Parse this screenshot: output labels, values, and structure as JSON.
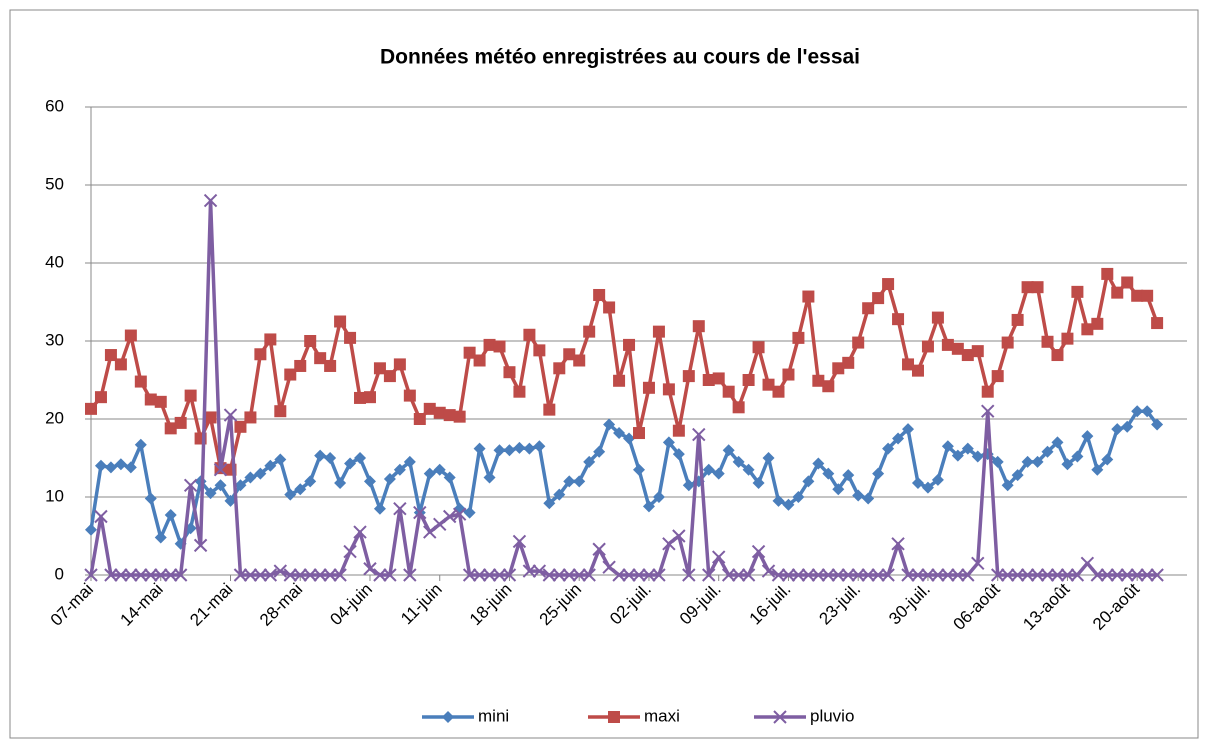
{
  "chart_data": {
    "type": "line",
    "title": "Données météo enregistrées au cours de l'essai",
    "categories": [
      "07-mai",
      null,
      null,
      null,
      null,
      null,
      null,
      "14-mai",
      null,
      null,
      null,
      null,
      null,
      null,
      "21-mai",
      null,
      null,
      null,
      null,
      null,
      null,
      "28-mai",
      null,
      null,
      null,
      null,
      null,
      null,
      "04-juin",
      null,
      null,
      null,
      null,
      null,
      null,
      "11-juin",
      null,
      null,
      null,
      null,
      null,
      null,
      "18-juin",
      null,
      null,
      null,
      null,
      null,
      null,
      "25-juin",
      null,
      null,
      null,
      null,
      null,
      null,
      "02-juil.",
      null,
      null,
      null,
      null,
      null,
      null,
      "09-juil.",
      null,
      null,
      null,
      null,
      null,
      null,
      "16-juil.",
      null,
      null,
      null,
      null,
      null,
      null,
      "23-juil.",
      null,
      null,
      null,
      null,
      null,
      null,
      "30-juil.",
      null,
      null,
      null,
      null,
      null,
      null,
      "06-août",
      null,
      null,
      null,
      null,
      null,
      null,
      "13-août",
      null,
      null,
      null,
      null,
      null,
      null,
      "20-août",
      null,
      null
    ],
    "series": [
      {
        "name": "mini",
        "color": "#4a7ebb",
        "marker": "diamond",
        "values": [
          5.8,
          14,
          13.8,
          14.2,
          13.8,
          16.7,
          9.8,
          4.8,
          7.7,
          4,
          6,
          12,
          10.5,
          11.5,
          9.5,
          11.5,
          12.5,
          13,
          14,
          14.8,
          10.3,
          11,
          12,
          15.3,
          15,
          11.8,
          14.3,
          15,
          12,
          8.5,
          12.3,
          13.5,
          14.5,
          8,
          13,
          13.5,
          12.5,
          8.5,
          8,
          16.2,
          12.5,
          16,
          16,
          16.3,
          16.2,
          16.5,
          9.2,
          10.3,
          12,
          12,
          14.5,
          15.8,
          19.3,
          18.2,
          17.5,
          13.5,
          8.8,
          10,
          17,
          15.5,
          11.5,
          12,
          13.5,
          13,
          16,
          14.5,
          13.5,
          11.8,
          15,
          9.5,
          9,
          10,
          12,
          14.3,
          13,
          11,
          12.8,
          10.2,
          9.8,
          13,
          16.2,
          17.5,
          18.7,
          11.8,
          11.2,
          12.2,
          16.5,
          15.3,
          16.2,
          15.2,
          15.5,
          14.5,
          11.5,
          12.8,
          14.5,
          14.5,
          15.8,
          17,
          14.2,
          15.2,
          17.8,
          13.5,
          14.8,
          18.7,
          19,
          21,
          21,
          19.3
        ]
      },
      {
        "name": "maxi",
        "color": "#be4b48",
        "marker": "square",
        "values": [
          21.3,
          22.8,
          28.2,
          27,
          30.7,
          24.8,
          22.5,
          22.2,
          18.8,
          19.5,
          23,
          17.5,
          20.2,
          13.7,
          13.5,
          19,
          20.2,
          28.3,
          30.2,
          21,
          25.7,
          26.8,
          30,
          27.8,
          26.8,
          32.5,
          30.4,
          22.7,
          22.8,
          26.5,
          25.5,
          27,
          23,
          20,
          21.3,
          20.8,
          20.5,
          20.3,
          28.5,
          27.5,
          29.5,
          29.3,
          26,
          23.5,
          30.8,
          28.8,
          21.2,
          26.5,
          28.3,
          27.5,
          31.2,
          35.9,
          34.3,
          24.9,
          29.5,
          18.2,
          24,
          31.2,
          23.8,
          18.5,
          25.5,
          31.9,
          25,
          25.2,
          23.5,
          21.5,
          25,
          29.2,
          24.4,
          23.5,
          25.7,
          30.4,
          35.7,
          24.9,
          24.2,
          26.5,
          27.2,
          29.8,
          34.2,
          35.5,
          37.3,
          32.8,
          27,
          26.2,
          29.3,
          33,
          29.5,
          29,
          28.2,
          28.7,
          23.5,
          25.5,
          29.8,
          32.7,
          36.9,
          36.9,
          29.9,
          28.2,
          30.3,
          36.3,
          31.5,
          32.2,
          38.6,
          36.2,
          37.5,
          35.8,
          35.8,
          32.3
        ]
      },
      {
        "name": "pluvio",
        "color": "#7e5ea2",
        "marker": "x",
        "values": [
          0,
          7.5,
          0,
          0,
          0,
          0,
          0,
          0,
          0,
          0,
          11.5,
          3.8,
          48,
          13.5,
          20.5,
          0,
          0,
          0,
          0,
          0.5,
          0,
          0,
          0,
          0,
          0,
          0,
          3,
          5.5,
          0.8,
          0,
          0,
          8.5,
          0,
          8,
          5.5,
          6.5,
          7.5,
          7.8,
          0,
          0,
          0,
          0,
          0,
          4.3,
          0.5,
          0.5,
          0,
          0,
          0,
          0,
          0,
          3.3,
          1,
          0,
          0,
          0,
          0,
          0,
          4,
          5,
          0,
          18,
          0,
          2.3,
          0,
          0,
          0,
          3,
          0.5,
          0,
          0,
          0,
          0,
          0,
          0,
          0,
          0,
          0,
          0,
          0,
          0,
          4,
          0,
          0,
          0,
          0,
          0,
          0,
          0,
          1.5,
          21,
          0,
          0,
          0,
          0,
          0,
          0,
          0,
          0,
          0,
          1.5,
          0,
          0,
          0,
          0,
          0,
          0,
          0
        ]
      }
    ],
    "ylim": [
      0,
      60
    ],
    "yticks": [
      0,
      10,
      20,
      30,
      40,
      50,
      60
    ],
    "grid": true,
    "legend": "bottom"
  }
}
